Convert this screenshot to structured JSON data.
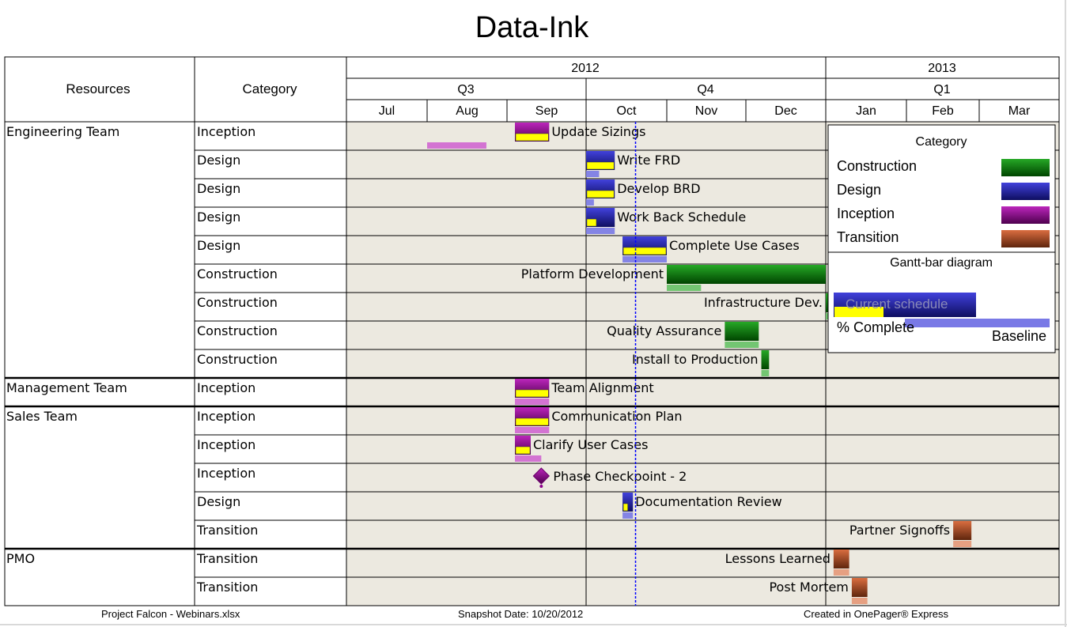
{
  "title": "Data-Ink",
  "header": {
    "resources_label": "Resources",
    "category_label": "Category",
    "years": [
      "2012",
      "2013"
    ],
    "quarters": [
      "Q3",
      "Q4",
      "Q1"
    ],
    "months": [
      "Jul",
      "Aug",
      "Sep",
      "Oct",
      "Nov",
      "Dec",
      "Jan",
      "Feb",
      "Mar"
    ]
  },
  "footer": {
    "file": "Project Falcon - Webinars.xlsx",
    "snapshot": "Snapshot Date: 10/20/2012",
    "created": "Created in OnePager® Express"
  },
  "colors": {
    "Construction": "#009900",
    "Design": "#1f1fd6",
    "Inception": "#b000b0",
    "Transition": "#d4531e",
    "percent_complete": "#ffff00",
    "timeline_bg": "#ece9e0",
    "snapshot_line": "#0000ff"
  },
  "chart_data": {
    "type": "gantt",
    "time_axis": {
      "start": "2012-07-01",
      "end": "2013-03-31"
    },
    "snapshot_date": "2012-10-20",
    "groups": [
      {
        "resource": "Engineering Team",
        "rows": 9
      },
      {
        "resource": "Management Team",
        "rows": 1
      },
      {
        "resource": "Sales Team",
        "rows": 5
      },
      {
        "resource": "PMO",
        "rows": 2
      }
    ],
    "tasks": [
      {
        "resource": "Engineering Team",
        "category": "Inception",
        "name": "Update Sizings",
        "start": "2012-09-04",
        "end": "2012-09-17",
        "percent_complete": 100,
        "baseline_start": "2012-08-01",
        "baseline_end": "2012-08-24",
        "label_side": "right"
      },
      {
        "resource": "Engineering Team",
        "category": "Design",
        "name": "Write FRD",
        "start": "2012-10-01",
        "end": "2012-10-12",
        "percent_complete": 100,
        "baseline_start": "2012-10-01",
        "baseline_end": "2012-10-06",
        "label_side": "right"
      },
      {
        "resource": "Engineering Team",
        "category": "Design",
        "name": "Develop BRD",
        "start": "2012-10-01",
        "end": "2012-10-12",
        "percent_complete": 100,
        "baseline_start": "2012-10-01",
        "baseline_end": "2012-10-04",
        "label_side": "right"
      },
      {
        "resource": "Engineering Team",
        "category": "Design",
        "name": "Work Back Schedule",
        "start": "2012-10-01",
        "end": "2012-10-12",
        "percent_complete": 35,
        "baseline_start": "2012-10-01",
        "baseline_end": "2012-10-12",
        "label_side": "right"
      },
      {
        "resource": "Engineering Team",
        "category": "Design",
        "name": "Complete Use Cases",
        "start": "2012-10-15",
        "end": "2012-11-01",
        "percent_complete": 100,
        "baseline_start": "2012-10-15",
        "baseline_end": "2012-11-01",
        "label_side": "right"
      },
      {
        "resource": "Engineering Team",
        "category": "Construction",
        "name": "Platform Development",
        "start": "2012-11-01",
        "end": "2013-01-01",
        "percent_complete": 0,
        "baseline_start": "2012-11-01",
        "baseline_end": "2012-11-14",
        "label_side": "left"
      },
      {
        "resource": "Engineering Team",
        "category": "Construction",
        "name": "Infrastructure Dev.",
        "start": "2013-01-01",
        "end": "2013-01-02",
        "percent_complete": 0,
        "baseline_start": "2013-01-01",
        "baseline_end": "2013-01-02",
        "label_side": "left"
      },
      {
        "resource": "Engineering Team",
        "category": "Construction",
        "name": "Quality Assurance",
        "start": "2012-11-23",
        "end": "2012-12-06",
        "percent_complete": 0,
        "baseline_start": "2012-11-23",
        "baseline_end": "2012-12-06",
        "label_side": "left"
      },
      {
        "resource": "Engineering Team",
        "category": "Construction",
        "name": "Install to Production",
        "start": "2012-12-07",
        "end": "2012-12-10",
        "percent_complete": 0,
        "baseline_start": "2012-12-07",
        "baseline_end": "2012-12-10",
        "label_side": "left"
      },
      {
        "resource": "Management Team",
        "category": "Inception",
        "name": "Team Alignment",
        "start": "2012-09-04",
        "end": "2012-09-17",
        "percent_complete": 100,
        "baseline_start": "2012-09-04",
        "baseline_end": "2012-09-17",
        "label_side": "right"
      },
      {
        "resource": "Sales Team",
        "category": "Inception",
        "name": "Communication Plan",
        "start": "2012-09-04",
        "end": "2012-09-17",
        "percent_complete": 100,
        "baseline_start": "2012-09-04",
        "baseline_end": "2012-09-17",
        "label_side": "right"
      },
      {
        "resource": "Sales Team",
        "category": "Inception",
        "name": "Clarify User Cases",
        "start": "2012-09-04",
        "end": "2012-09-10",
        "percent_complete": 100,
        "baseline_start": "2012-09-04",
        "baseline_end": "2012-09-14",
        "label_side": "right"
      },
      {
        "resource": "Sales Team",
        "category": "Inception",
        "name": "Phase Checkpoint - 2",
        "milestone": "2012-09-14",
        "label_side": "right"
      },
      {
        "resource": "Sales Team",
        "category": "Design",
        "name": "Documentation Review",
        "start": "2012-10-15",
        "end": "2012-10-19",
        "percent_complete": 50,
        "baseline_start": "2012-10-15",
        "baseline_end": "2012-10-19",
        "label_side": "right"
      },
      {
        "resource": "Sales Team",
        "category": "Transition",
        "name": "Partner Signoffs",
        "start": "2013-02-19",
        "end": "2013-02-26",
        "percent_complete": 0,
        "baseline_start": "2013-02-19",
        "baseline_end": "2013-02-26",
        "label_side": "left"
      },
      {
        "resource": "PMO",
        "category": "Transition",
        "name": "Lessons Learned",
        "start": "2013-01-04",
        "end": "2013-01-10",
        "percent_complete": 0,
        "baseline_start": "2013-01-04",
        "baseline_end": "2013-01-10",
        "label_side": "left"
      },
      {
        "resource": "PMO",
        "category": "Transition",
        "name": "Post Mortem",
        "start": "2013-01-11",
        "end": "2013-01-17",
        "percent_complete": 0,
        "baseline_start": "2013-01-11",
        "baseline_end": "2013-01-17",
        "label_side": "left"
      }
    ],
    "legend": {
      "title": "Category",
      "items": [
        "Construction",
        "Design",
        "Inception",
        "Transition"
      ],
      "diagram_title": "Gantt-bar diagram",
      "current_label": "Current schedule",
      "percent_label": "% Complete",
      "baseline_label": "Baseline"
    }
  }
}
